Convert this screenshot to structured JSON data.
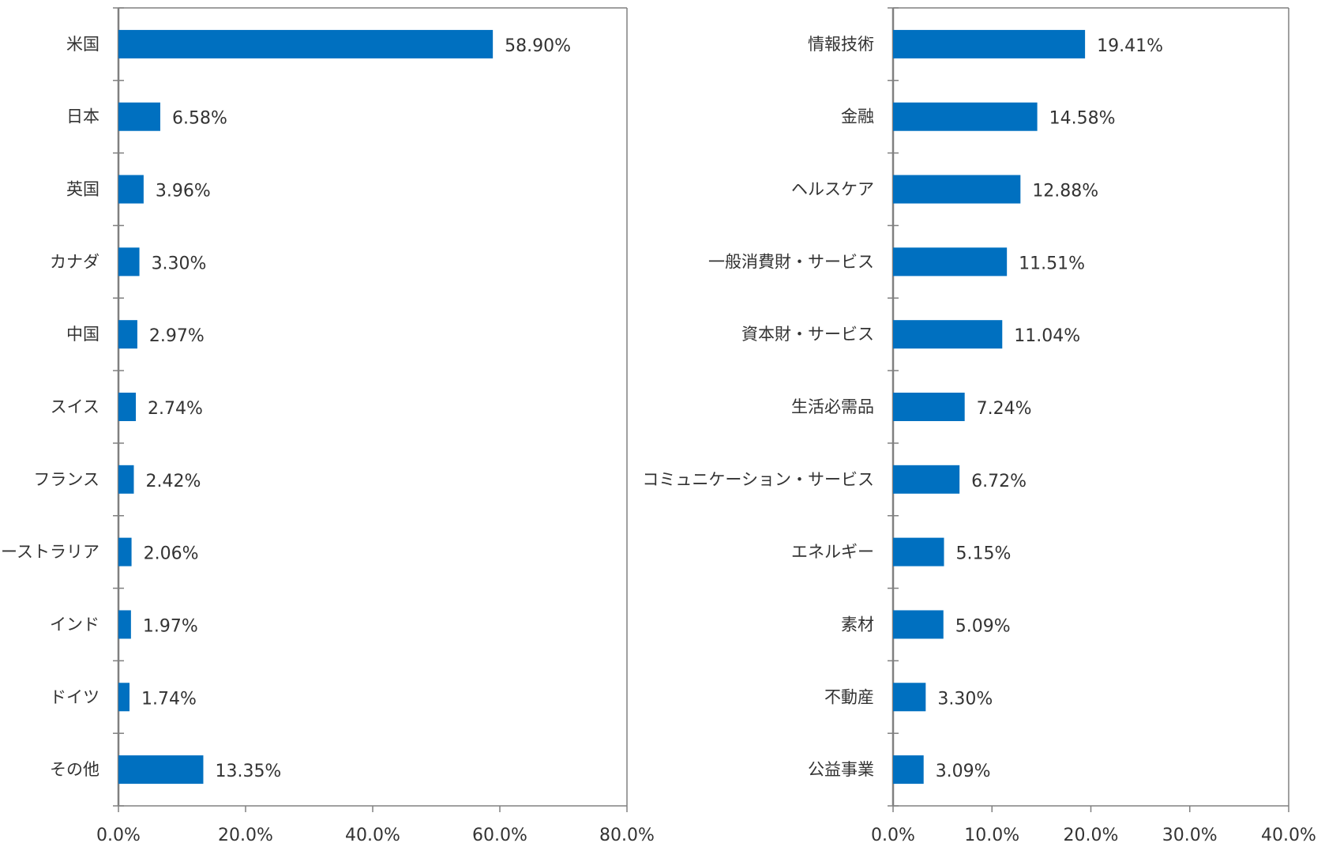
{
  "colors": {
    "bar": "#0070c0",
    "axis": "#808080",
    "text": "#333333",
    "background": "#ffffff"
  },
  "chart_data": [
    {
      "type": "bar",
      "orientation": "horizontal",
      "categories": [
        "米国",
        "日本",
        "英国",
        "カナダ",
        "中国",
        "スイス",
        "フランス",
        "オーストラリア",
        "インド",
        "ドイツ",
        "その他"
      ],
      "values": [
        58.9,
        6.58,
        3.96,
        3.3,
        2.97,
        2.74,
        2.42,
        2.06,
        1.97,
        1.74,
        13.35
      ],
      "value_labels": [
        "58.90%",
        "6.58%",
        "3.96%",
        "3.30%",
        "2.97%",
        "2.74%",
        "2.42%",
        "2.06%",
        "1.97%",
        "1.74%",
        "13.35%"
      ],
      "xlim": [
        0,
        80
      ],
      "ticks": [
        0,
        20,
        40,
        60,
        80
      ],
      "tick_labels": [
        "0.0%",
        "20.0%",
        "40.0%",
        "60.0%",
        "80.0%"
      ],
      "grid": false
    },
    {
      "type": "bar",
      "orientation": "horizontal",
      "categories": [
        "情報技術",
        "金融",
        "ヘルスケア",
        "一般消費財・サービス",
        "資本財・サービス",
        "生活必需品",
        "コミュニケーション・サービス",
        "エネルギー",
        "素材",
        "不動産",
        "公益事業"
      ],
      "values": [
        19.41,
        14.58,
        12.88,
        11.51,
        11.04,
        7.24,
        6.72,
        5.15,
        5.09,
        3.3,
        3.09
      ],
      "value_labels": [
        "19.41%",
        "14.58%",
        "12.88%",
        "11.51%",
        "11.04%",
        "7.24%",
        "6.72%",
        "5.15%",
        "5.09%",
        "3.30%",
        "3.09%"
      ],
      "xlim": [
        0,
        40
      ],
      "ticks": [
        0,
        10,
        20,
        30,
        40
      ],
      "tick_labels": [
        "0.0%",
        "10.0%",
        "20.0%",
        "30.0%",
        "40.0%"
      ],
      "grid": false
    }
  ]
}
